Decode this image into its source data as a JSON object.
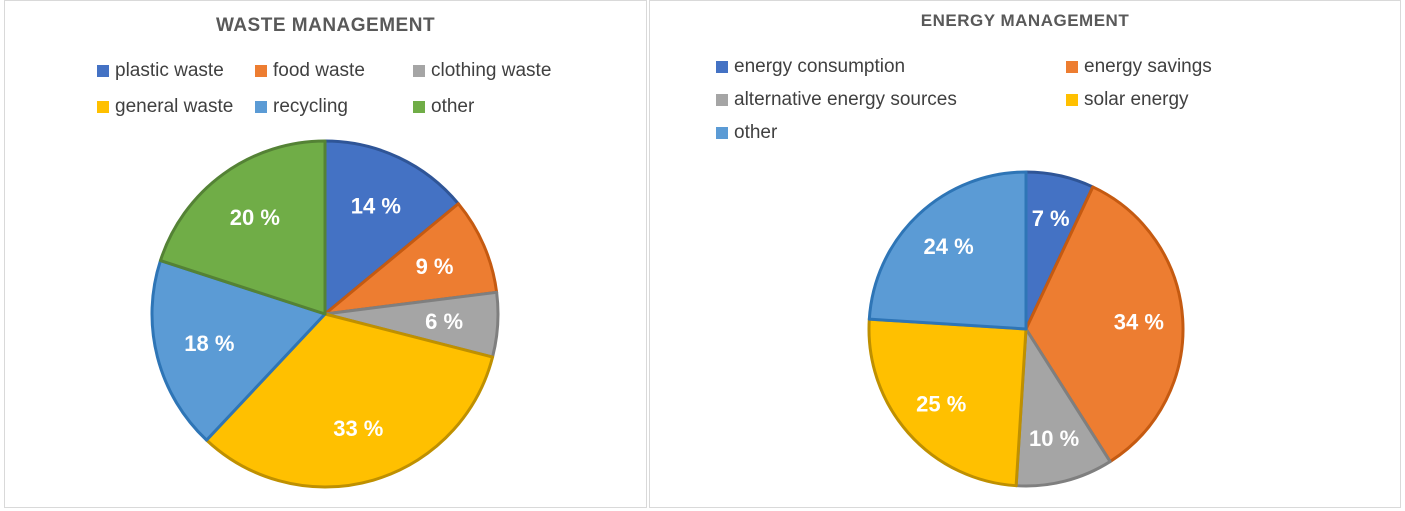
{
  "chart_data": [
    {
      "type": "pie",
      "title": "WASTE MANAGEMENT",
      "slices": [
        {
          "label": "plastic waste",
          "value": 14,
          "display": "14 %",
          "color": "#4472C4",
          "border": "#2F5597"
        },
        {
          "label": "food waste",
          "value": 9,
          "display": "9 %",
          "color": "#ED7D31",
          "border": "#C55A11"
        },
        {
          "label": "clothing waste",
          "value": 6,
          "display": "6 %",
          "color": "#A5A5A5",
          "border": "#7F7F7F"
        },
        {
          "label": "general waste",
          "value": 33,
          "display": "33 %",
          "color": "#FFC000",
          "border": "#BF9000"
        },
        {
          "label": "recycling",
          "value": 18,
          "display": "18 %",
          "color": "#5B9BD5",
          "border": "#2E75B6"
        },
        {
          "label": "other",
          "value": 20,
          "display": "20 %",
          "color": "#70AD47",
          "border": "#548235"
        }
      ],
      "legend_placement": "top"
    },
    {
      "type": "pie",
      "title": "ENERGY MANAGEMENT",
      "slices": [
        {
          "label": "energy consumption",
          "value": 7,
          "display": "7 %",
          "color": "#4472C4",
          "border": "#2F5597"
        },
        {
          "label": "energy savings",
          "value": 34,
          "display": "34 %",
          "color": "#ED7D31",
          "border": "#C55A11"
        },
        {
          "label": "alternative energy sources",
          "value": 10,
          "display": "10 %",
          "color": "#A5A5A5",
          "border": "#7F7F7F"
        },
        {
          "label": "solar energy",
          "value": 25,
          "display": "25 %",
          "color": "#FFC000",
          "border": "#BF9000"
        },
        {
          "label": "other",
          "value": 24,
          "display": "24 %",
          "color": "#5B9BD5",
          "border": "#2E75B6"
        }
      ],
      "legend_placement": "top"
    }
  ]
}
